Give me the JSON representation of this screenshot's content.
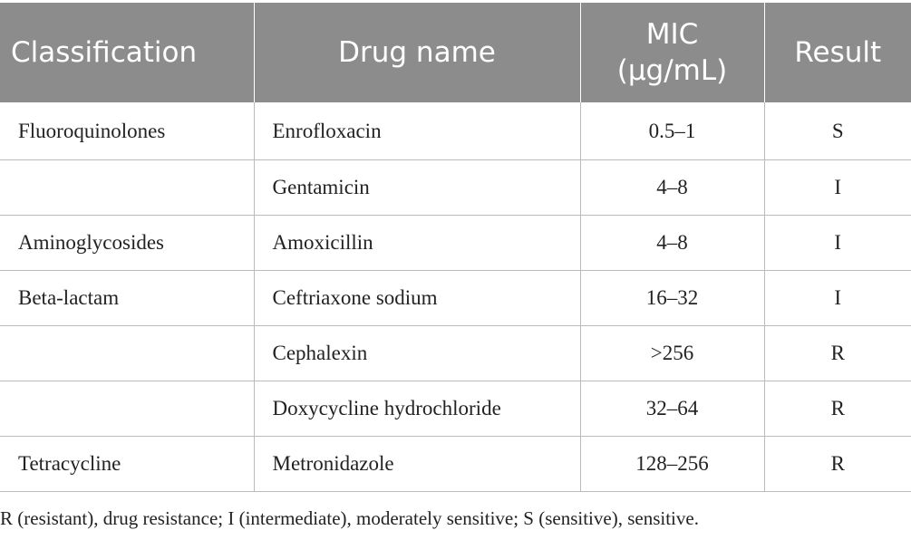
{
  "table": {
    "header": [
      "Classification",
      "Drug name",
      "MIC (μg/mL)",
      "Result"
    ],
    "rows": [
      [
        "Fluoroquinolones",
        "Enrofloxacin",
        "0.5–1",
        "S"
      ],
      [
        null,
        "Gentamicin",
        "4–8",
        "I"
      ],
      [
        "Aminoglycosides",
        "Amoxicillin",
        "4–8",
        "I"
      ],
      [
        "Beta-lactam",
        "Ceftriaxone sodium",
        "16–32",
        "I"
      ],
      [
        null,
        "Cephalexin",
        ">256",
        "R"
      ],
      [
        null,
        "Doxycycline hydrochloride",
        "32–64",
        "R"
      ],
      [
        "Tetracycline",
        "Metronidazole",
        "128–256",
        "R"
      ]
    ]
  },
  "footnote": "R (resistant), drug resistance; I (intermediate), moderately sensitive; S (sensitive), sensitive."
}
